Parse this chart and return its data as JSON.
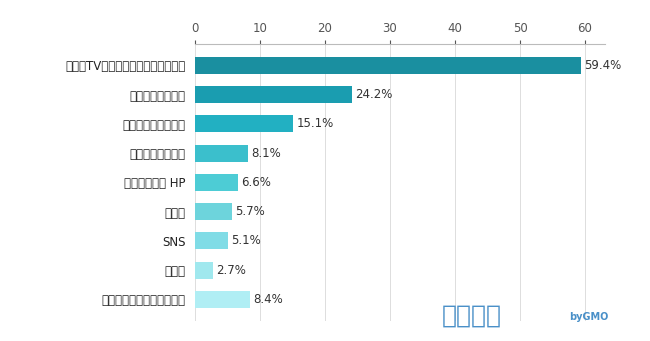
{
  "categories": [
    "新聞・TV・インターネットメディア",
    "学校からお知らせ",
    "保護者同士の口コミ",
    "塾からのお知らせ",
    "文部科学省の HP",
    "チラシ",
    "SNS",
    "その他",
    "わからない・覚えていない"
  ],
  "values": [
    59.4,
    24.2,
    15.1,
    8.1,
    6.6,
    5.7,
    5.1,
    2.7,
    8.4
  ],
  "labels": [
    "59.4%",
    "24.2%",
    "15.1%",
    "8.1%",
    "6.6%",
    "5.7%",
    "5.1%",
    "2.7%",
    "8.4%"
  ],
  "bar_colors": [
    "#1a8fa0",
    "#1a9db0",
    "#22b0c2",
    "#3bbfcc",
    "#4dccd5",
    "#6dd4dc",
    "#80dce6",
    "#a0e8ee",
    "#b0eef4"
  ],
  "xlim": [
    0,
    63
  ],
  "xticks": [
    0,
    10,
    20,
    30,
    40,
    50,
    60
  ],
  "background_color": "#ffffff",
  "bar_height": 0.58,
  "label_fontsize": 8.5,
  "tick_fontsize": 8.5,
  "ytick_fontsize": 8.5,
  "logo_color": "#4a90c8",
  "logo_text1": "コエテコ",
  "logo_text2": "byGMO"
}
